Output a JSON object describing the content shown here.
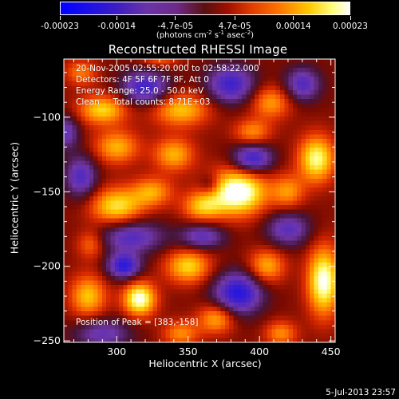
{
  "colorbar": {
    "tick_labels": [
      "-0.00023",
      "-0.00014",
      "-4.7e-05",
      "4.7e-05",
      "0.00014",
      "0.00023"
    ],
    "tick_values": [
      -0.00023,
      -0.00014,
      -4.7e-05,
      4.7e-05,
      0.00014,
      0.00023
    ],
    "range": [
      -0.00023,
      0.00023
    ],
    "units_prefix": "(photons cm",
    "units_exp1": "-2",
    "units_mid1": " s",
    "units_exp2": "-1",
    "units_mid2": " asec",
    "units_exp3": "-2",
    "units_suffix": ")",
    "colors": [
      "#0000ff",
      "#6a34a8",
      "#5a1010",
      "#e03c00",
      "#ff7000",
      "#ffc800",
      "#ffffff"
    ]
  },
  "info": {
    "line1": "20-Nov-2005 02:55:20.000 to 02:58:22.000",
    "line2": "Detectors: 4F 5F 6F 7F 8F, Att 0",
    "line3": "Energy Range: 25.0 - 50.0 keV",
    "line4": "Clean     Total counts: 8.71E+03",
    "peak": "Position of Peak = [383,-158]"
  },
  "timestamp": "5-Jul-2013 23:57",
  "chart_data": {
    "type": "heatmap",
    "title": "Reconstructed RHESSI Image",
    "xlabel": "Heliocentric X (arcsec)",
    "ylabel": "Heliocentric Y (arcsec)",
    "xlim": [
      263,
      453
    ],
    "ylim": [
      -251,
      -61
    ],
    "x_ticks": [
      300,
      350,
      400,
      450
    ],
    "y_ticks": [
      -100,
      -150,
      -200,
      -250
    ],
    "x_tick_labels": [
      "300",
      "350",
      "400",
      "450"
    ],
    "y_tick_labels": [
      "−100",
      "−150",
      "−200",
      "−250"
    ],
    "grid": false,
    "peak_position": [
      383,
      -158
    ],
    "colorbar_range": [
      -0.00023,
      0.00023
    ],
    "colorbar_units": "photons cm^-2 s^-1 asec^-2",
    "blobs": [
      {
        "x": 385,
        "y": -150,
        "sx": 14,
        "sy": 11,
        "a": 1.0
      },
      {
        "x": 360,
        "y": -160,
        "sx": 10,
        "sy": 7,
        "a": 0.55
      },
      {
        "x": 300,
        "y": -160,
        "sx": 13,
        "sy": 9,
        "a": 0.7
      },
      {
        "x": 325,
        "y": -150,
        "sx": 10,
        "sy": 7,
        "a": 0.5
      },
      {
        "x": 340,
        "y": -125,
        "sx": 10,
        "sy": 8,
        "a": 0.55
      },
      {
        "x": 300,
        "y": -120,
        "sx": 11,
        "sy": 8,
        "a": 0.55
      },
      {
        "x": 290,
        "y": -95,
        "sx": 12,
        "sy": 7,
        "a": 0.65
      },
      {
        "x": 345,
        "y": -95,
        "sx": 14,
        "sy": 8,
        "a": 0.6
      },
      {
        "x": 408,
        "y": -90,
        "sx": 10,
        "sy": 8,
        "a": 0.5
      },
      {
        "x": 440,
        "y": -128,
        "sx": 9,
        "sy": 11,
        "a": 0.8
      },
      {
        "x": 420,
        "y": -150,
        "sx": 8,
        "sy": 8,
        "a": 0.45
      },
      {
        "x": 445,
        "y": -210,
        "sx": 8,
        "sy": 16,
        "a": 0.9
      },
      {
        "x": 405,
        "y": -200,
        "sx": 9,
        "sy": 8,
        "a": 0.55
      },
      {
        "x": 350,
        "y": -200,
        "sx": 11,
        "sy": 8,
        "a": 0.65
      },
      {
        "x": 316,
        "y": -222,
        "sx": 8,
        "sy": 8,
        "a": 0.9
      },
      {
        "x": 280,
        "y": -220,
        "sx": 9,
        "sy": 10,
        "a": 0.6
      },
      {
        "x": 370,
        "y": -235,
        "sx": 9,
        "sy": 7,
        "a": 0.55
      },
      {
        "x": 345,
        "y": -245,
        "sx": 9,
        "sy": 6,
        "a": 0.45
      },
      {
        "x": 275,
        "y": -70,
        "sx": 8,
        "sy": 6,
        "a": 0.4
      },
      {
        "x": 395,
        "y": -110,
        "sx": 9,
        "sy": 6,
        "a": 0.45
      },
      {
        "x": 415,
        "y": -245,
        "sx": 8,
        "sy": 6,
        "a": 0.45
      },
      {
        "x": 282,
        "y": -185,
        "sx": 7,
        "sy": 7,
        "a": 0.4
      },
      {
        "x": 330,
        "y": -60,
        "sx": 9,
        "sy": 5,
        "a": 0.35
      },
      {
        "x": 320,
        "y": -80,
        "sx": 12,
        "sy": 8,
        "a": -0.7
      },
      {
        "x": 380,
        "y": -78,
        "sx": 12,
        "sy": 9,
        "a": -0.7
      },
      {
        "x": 430,
        "y": -78,
        "sx": 9,
        "sy": 8,
        "a": -0.6
      },
      {
        "x": 395,
        "y": -128,
        "sx": 10,
        "sy": 7,
        "a": -0.75
      },
      {
        "x": 310,
        "y": -180,
        "sx": 16,
        "sy": 8,
        "a": -0.6
      },
      {
        "x": 360,
        "y": -180,
        "sx": 11,
        "sy": 6,
        "a": -0.55
      },
      {
        "x": 305,
        "y": -200,
        "sx": 8,
        "sy": 6,
        "a": -0.8
      },
      {
        "x": 385,
        "y": -218,
        "sx": 12,
        "sy": 10,
        "a": -0.85
      },
      {
        "x": 290,
        "y": -245,
        "sx": 14,
        "sy": 7,
        "a": -0.5
      },
      {
        "x": 420,
        "y": -175,
        "sx": 11,
        "sy": 8,
        "a": -0.55
      },
      {
        "x": 275,
        "y": -140,
        "sx": 8,
        "sy": 10,
        "a": -0.6
      },
      {
        "x": 265,
        "y": -110,
        "sx": 6,
        "sy": 8,
        "a": -0.5
      },
      {
        "x": 365,
        "y": -145,
        "sx": 5,
        "sy": 5,
        "a": -0.3
      }
    ]
  }
}
